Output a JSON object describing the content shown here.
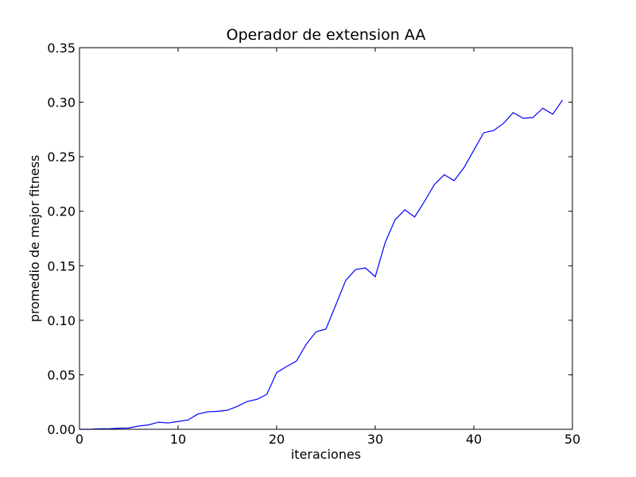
{
  "chart_data": {
    "type": "line",
    "title": "Operador de extension AA",
    "xlabel": "iteraciones",
    "ylabel": "promedio de mejor fitness",
    "xlim": [
      0,
      50
    ],
    "ylim": [
      0,
      0.35
    ],
    "xticks": [
      0,
      10,
      20,
      30,
      40,
      50
    ],
    "xtick_labels": [
      "0",
      "10",
      "20",
      "30",
      "40",
      "50"
    ],
    "yticks": [
      0,
      0.05,
      0.1,
      0.15,
      0.2,
      0.25,
      0.3,
      0.35
    ],
    "ytick_labels": [
      "0.00",
      "0.05",
      "0.10",
      "0.15",
      "0.20",
      "0.25",
      "0.30",
      "0.35"
    ],
    "grid": false,
    "series": [
      {
        "color": "#0000ff",
        "x": [
          0,
          1,
          2,
          3,
          4,
          5,
          6,
          7,
          8,
          9,
          10,
          11,
          12,
          13,
          14,
          15,
          16,
          17,
          18,
          19,
          20,
          21,
          22,
          23,
          24,
          25,
          26,
          27,
          28,
          29,
          30,
          31,
          32,
          33,
          34,
          35,
          36,
          37,
          38,
          39,
          40,
          41,
          42,
          43,
          44,
          45,
          46,
          47,
          48,
          49
        ],
        "y": [
          0.0,
          0.0,
          0.0005,
          0.0005,
          0.001,
          0.0012,
          0.003,
          0.004,
          0.0065,
          0.0058,
          0.0072,
          0.0085,
          0.014,
          0.016,
          0.0165,
          0.0175,
          0.021,
          0.0255,
          0.0275,
          0.032,
          0.052,
          0.0575,
          0.0625,
          0.078,
          0.0895,
          0.092,
          0.114,
          0.1365,
          0.1465,
          0.148,
          0.14,
          0.171,
          0.192,
          0.2013,
          0.1948,
          0.209,
          0.2245,
          0.2335,
          0.228,
          0.24,
          0.256,
          0.272,
          0.274,
          0.2805,
          0.2905,
          0.2853,
          0.286,
          0.2945,
          0.289,
          0.302
        ]
      }
    ]
  }
}
